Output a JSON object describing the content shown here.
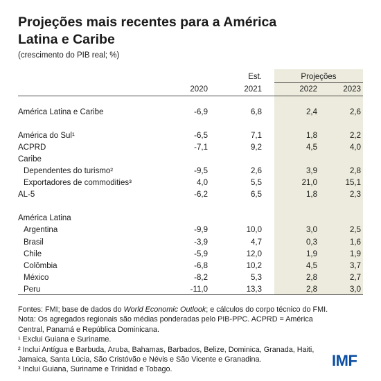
{
  "title": "Projeções mais recentes para a América Latina e Caribe",
  "subtitle": "(crescimento do PIB real;  %)",
  "header": {
    "est_label": "Est.",
    "proj_label": "Projeções",
    "years": [
      "2020",
      "2021",
      "2022",
      "2023"
    ]
  },
  "rows": [
    {
      "label": "América Latina e Caribe",
      "values": [
        "-6,9",
        "6,8",
        "2,4",
        "2,6"
      ]
    },
    {
      "label": "América do Sul¹",
      "values": [
        "-6,5",
        "7,1",
        "1,8",
        "2,2"
      ]
    },
    {
      "label": "ACPRD",
      "values": [
        "-7,1",
        "9,2",
        "4,5",
        "4,0"
      ]
    },
    {
      "label": "Caribe",
      "values": [
        "",
        "",
        "",
        ""
      ]
    },
    {
      "label": "Dependentes do turismo²",
      "values": [
        "-9,5",
        "2,6",
        "3,9",
        "2,8"
      ]
    },
    {
      "label": "Exportadores de commodities³",
      "values": [
        "4,0",
        "5,5",
        "21,0",
        "15,1"
      ]
    },
    {
      "label": "AL-5",
      "values": [
        "-6,2",
        "6,5",
        "1,8",
        "2,3"
      ]
    },
    {
      "label": "América Latina",
      "values": [
        "",
        "",
        "",
        ""
      ]
    },
    {
      "label": "Argentina",
      "values": [
        "-9,9",
        "10,0",
        "3,0",
        "2,5"
      ]
    },
    {
      "label": "Brasil",
      "values": [
        "-3,9",
        "4,7",
        "0,3",
        "1,6"
      ]
    },
    {
      "label": "Chile",
      "values": [
        "-5,9",
        "12,0",
        "1,9",
        "1,9"
      ]
    },
    {
      "label": "Colômbia",
      "values": [
        "-6,8",
        "10,2",
        "4,5",
        "3,7"
      ]
    },
    {
      "label": "México",
      "values": [
        "-8,2",
        "5,3",
        "2,8",
        "2,7"
      ]
    },
    {
      "label": "Peru",
      "values": [
        "-11,0",
        "13,3",
        "2,8",
        "3,0"
      ]
    }
  ],
  "notes": {
    "sources_prefix": "Fontes: FMI; base de dados do ",
    "sources_italic": "World Economic Outlook",
    "sources_suffix": "; e cálculos do corpo técnico do FMI.",
    "note": "Nota: Os agregados regionais são médias ponderadas pelo PIB-PPC. ACPRD = América Central, Panamá e República Dominicana.",
    "fn1": "¹ Exclui Guiana e Suriname.",
    "fn2": "² Inclui Antígua e Barbuda, Aruba, Bahamas, Barbados, Belize, Dominica, Granada, Haiti, Jamaica, Santa Lúcia, São Cristóvão e Névis e São Vicente e Granadina.",
    "fn3": "³ Inclui Guiana, Suriname e Trinidad e Tobago."
  },
  "logo": "IMF",
  "colors": {
    "shade": "#ecebdd",
    "logo": "#0b4ea2",
    "text": "#1a1a1a"
  }
}
